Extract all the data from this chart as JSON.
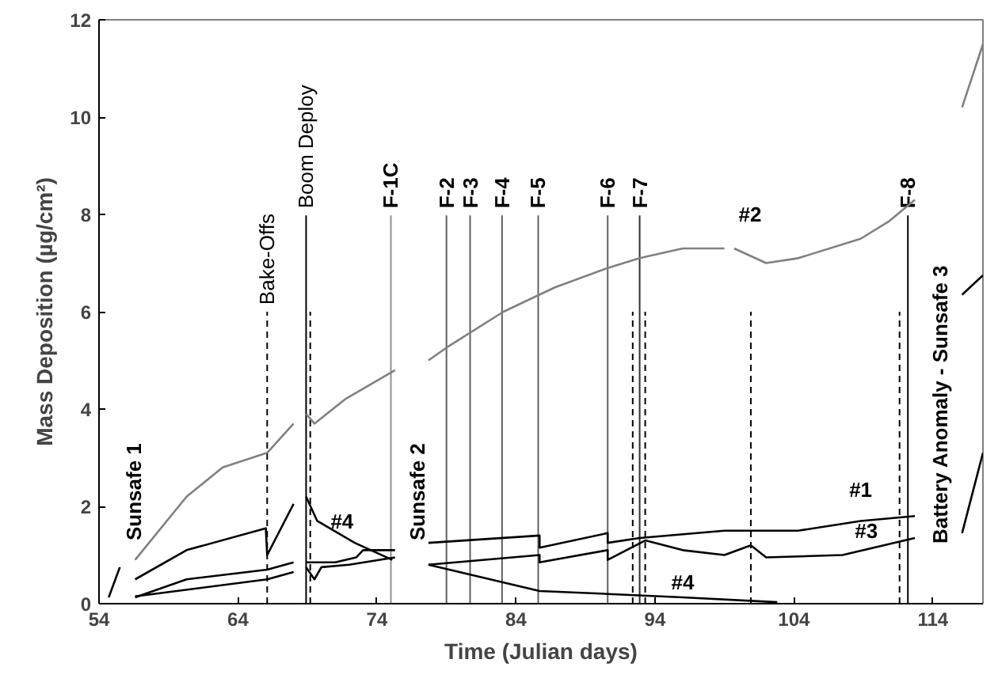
{
  "chart_data": {
    "type": "line",
    "xlabel": "Time (Julian days)",
    "ylabel": "Mass Deposition (µg/cm²)",
    "xlim": [
      54,
      117.6
    ],
    "ylim": [
      0,
      12
    ],
    "xticks": [
      54,
      64,
      74,
      84,
      94,
      104,
      114
    ],
    "yticks": [
      0,
      2,
      4,
      6,
      8,
      10,
      12
    ],
    "grid": false,
    "marker": "none",
    "line_style": "solid",
    "series": [
      {
        "name": "#2",
        "color": "#808080",
        "x": [
          56.6,
          60.3,
          62.9,
          66.1,
          68.0,
          null,
          68.9,
          69.5,
          71.7,
          75.3,
          null,
          77.7,
          79.2,
          83.1,
          86.8,
          90.6,
          92.9,
          96.0,
          99.0,
          null,
          99.7,
          102.0,
          104.3,
          108.8,
          110.8,
          112.7,
          null,
          116.1,
          117.6
        ],
        "values": [
          0.9,
          2.2,
          2.8,
          3.1,
          3.7,
          null,
          3.9,
          3.7,
          4.2,
          4.8,
          null,
          5.0,
          5.3,
          6.0,
          6.5,
          6.9,
          7.1,
          7.3,
          7.3,
          null,
          7.3,
          7.0,
          7.1,
          7.5,
          7.85,
          8.3,
          null,
          10.2,
          11.5
        ]
      },
      {
        "name": "#1",
        "color": "#000000",
        "x": [
          54.7,
          55.5,
          null,
          56.6,
          60.3,
          66.0,
          66.1,
          68.0,
          null,
          68.9,
          71.0,
          72.5,
          73.0,
          75.3,
          null,
          77.7,
          85.7,
          85.7,
          90.6,
          90.6,
          92.9,
          99.0,
          104.3,
          108.8,
          112.7,
          null,
          116.1,
          117.6
        ],
        "values": [
          0.13,
          0.75,
          null,
          0.5,
          1.1,
          1.55,
          1.0,
          2.05,
          null,
          0.85,
          0.85,
          0.95,
          1.1,
          1.1,
          null,
          1.25,
          1.4,
          1.15,
          1.45,
          1.25,
          1.35,
          1.5,
          1.5,
          1.7,
          1.8,
          null,
          6.35,
          6.75
        ]
      },
      {
        "name": "#3",
        "color": "#000000",
        "x": [
          56.6,
          60.3,
          66.1,
          68.0,
          null,
          68.9,
          69.5,
          70.0,
          72.0,
          75.3,
          null,
          77.7,
          85.7,
          85.7,
          90.6,
          90.6,
          93.3,
          96.0,
          99.0,
          100.9,
          102.0,
          107.5,
          112.7,
          null,
          116.1,
          117.6
        ],
        "values": [
          0.13,
          0.5,
          0.7,
          0.85,
          null,
          0.75,
          0.5,
          0.75,
          0.8,
          0.95,
          null,
          0.8,
          1.0,
          0.85,
          1.1,
          0.9,
          1.3,
          1.1,
          1.0,
          1.2,
          0.95,
          1.0,
          1.35,
          null,
          1.45,
          3.1
        ]
      },
      {
        "name": "#4",
        "color": "#000000",
        "x": [
          56.6,
          66.1,
          68.0,
          null,
          68.9,
          69.7,
          72.4,
          75.1,
          null,
          77.7,
          85.7,
          90.6,
          96.0,
          102.8
        ],
        "values": [
          0.15,
          0.5,
          0.65,
          null,
          2.2,
          1.7,
          1.25,
          0.9,
          null,
          0.8,
          0.26,
          0.2,
          0.13,
          0.03
        ]
      }
    ],
    "ref_lines": [
      {
        "axis": "x",
        "value": 66.1,
        "label": "Bake-Offs",
        "color": "#000000",
        "line_style": "dashed"
      },
      {
        "axis": "x",
        "value": 68.9,
        "label": "Boom Deploy",
        "color": "#000000"
      },
      {
        "axis": "x",
        "value": 69.2,
        "label": null,
        "color": "#000000",
        "line_style": "dashed"
      },
      {
        "axis": "x",
        "value": 75.0,
        "label": "F-1C",
        "color": "#909090"
      },
      {
        "axis": "x",
        "value": 79.0,
        "label": "F-2",
        "color": "#606060"
      },
      {
        "axis": "x",
        "value": 80.7,
        "label": "F-3",
        "color": "#606060"
      },
      {
        "axis": "x",
        "value": 83.0,
        "label": "F-4",
        "color": "#606060"
      },
      {
        "axis": "x",
        "value": 85.6,
        "label": "F-5",
        "color": "#606060"
      },
      {
        "axis": "x",
        "value": 90.6,
        "label": "F-6",
        "color": "#606060"
      },
      {
        "axis": "x",
        "value": 92.4,
        "label": null,
        "color": "#000000",
        "line_style": "dashed"
      },
      {
        "axis": "x",
        "value": 92.9,
        "label": "F-7",
        "color": "#303030"
      },
      {
        "axis": "x",
        "value": 93.3,
        "label": null,
        "color": "#000000",
        "line_style": "dashed"
      },
      {
        "axis": "x",
        "value": 100.9,
        "label": null,
        "color": "#000000",
        "line_style": "dashed"
      },
      {
        "axis": "x",
        "value": 111.6,
        "label": null,
        "color": "#000000",
        "line_style": "dashed"
      },
      {
        "axis": "x",
        "value": 112.2,
        "label": "F-8",
        "color": "#000000"
      }
    ],
    "annotations": [
      "Sunsafe 1",
      "Sunsafe 2",
      "Battery Anomaly - Sunsafe 3"
    ]
  }
}
